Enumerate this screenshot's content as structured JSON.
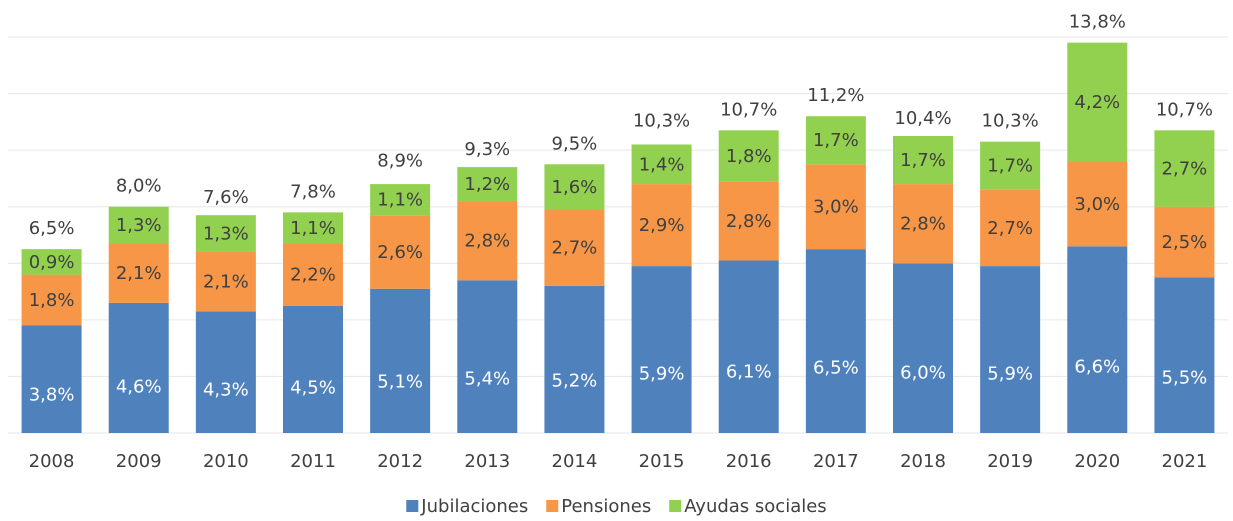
{
  "chart_data": {
    "type": "stacked_bar",
    "categories": [
      "2008",
      "2009",
      "2010",
      "2011",
      "2012",
      "2013",
      "2014",
      "2015",
      "2016",
      "2017",
      "2018",
      "2019",
      "2020",
      "2021"
    ],
    "series": [
      {
        "name": "Jubilaciones",
        "color": "#4f81bd",
        "values": [
          3.8,
          4.6,
          4.3,
          4.5,
          5.1,
          5.4,
          5.2,
          5.9,
          6.1,
          6.5,
          6.0,
          5.9,
          6.6,
          5.5
        ],
        "value_labels": [
          "3,8%",
          "4,6%",
          "4,3%",
          "4,5%",
          "5,1%",
          "5,4%",
          "5,2%",
          "5,9%",
          "6,1%",
          "6,5%",
          "6,0%",
          "5,9%",
          "6,6%",
          "5,5%"
        ]
      },
      {
        "name": "Pensiones",
        "color": "#f79646",
        "values": [
          1.8,
          2.1,
          2.1,
          2.2,
          2.6,
          2.8,
          2.7,
          2.9,
          2.8,
          3.0,
          2.8,
          2.7,
          3.0,
          2.5
        ],
        "value_labels": [
          "1,8%",
          "2,1%",
          "2,1%",
          "2,2%",
          "2,6%",
          "2,8%",
          "2,7%",
          "2,9%",
          "2,8%",
          "3,0%",
          "2,8%",
          "2,7%",
          "3,0%",
          "2,5%"
        ]
      },
      {
        "name": "Ayudas sociales",
        "color": "#92d050",
        "values": [
          0.9,
          1.3,
          1.3,
          1.1,
          1.1,
          1.2,
          1.6,
          1.4,
          1.8,
          1.7,
          1.7,
          1.7,
          4.2,
          2.7
        ],
        "value_labels": [
          "0,9%",
          "1,3%",
          "1,3%",
          "1,1%",
          "1,1%",
          "1,2%",
          "1,6%",
          "1,4%",
          "1,8%",
          "1,7%",
          "1,7%",
          "1,7%",
          "4,2%",
          "2,7%"
        ]
      }
    ],
    "totals": [
      6.5,
      8.0,
      7.6,
      7.8,
      8.9,
      9.3,
      9.5,
      10.3,
      10.7,
      11.2,
      10.4,
      10.3,
      13.8,
      10.7
    ],
    "total_labels": [
      "6,5%",
      "8,0%",
      "7,6%",
      "7,8%",
      "8,9%",
      "9,3%",
      "9,5%",
      "10,3%",
      "10,7%",
      "11,2%",
      "10,4%",
      "10,3%",
      "13,8%",
      "10,7%"
    ],
    "ylim": [
      0,
      14
    ],
    "yticks": [
      0,
      2,
      4,
      6,
      8,
      10,
      12,
      14
    ],
    "grid": true,
    "legend": "bottom"
  }
}
